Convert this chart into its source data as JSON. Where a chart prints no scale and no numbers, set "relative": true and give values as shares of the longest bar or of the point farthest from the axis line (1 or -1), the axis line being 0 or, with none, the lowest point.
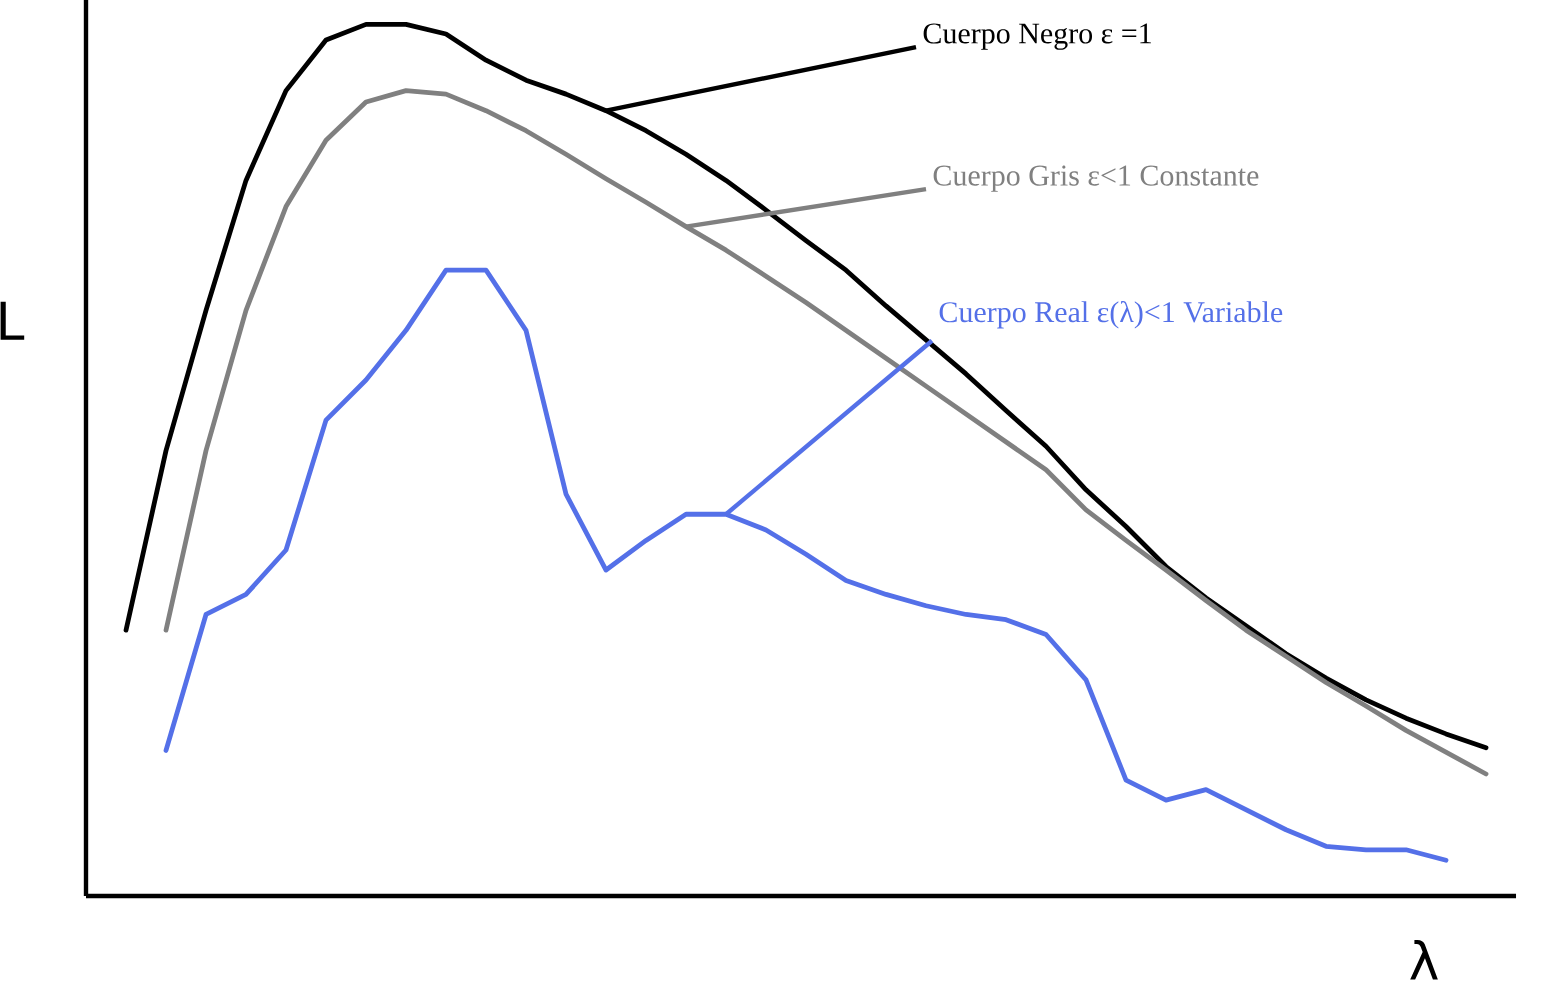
{
  "chart_data": {
    "type": "line",
    "relative": true,
    "xlabel": "λ",
    "ylabel": "L",
    "categories": [
      null,
      null,
      null,
      null,
      null,
      null,
      null,
      null,
      null,
      null,
      null,
      null,
      null,
      null,
      null,
      null,
      null,
      null,
      null,
      null,
      null,
      null,
      null,
      null,
      null,
      null,
      null,
      null,
      null,
      null,
      null,
      null,
      null,
      null,
      null
    ],
    "series": [
      {
        "name": "Cuerpo Negro  ε =1",
        "color": "#000000",
        "values": [
          0.305,
          0.511,
          0.672,
          0.821,
          0.924,
          0.982,
          1,
          1,
          0.989,
          0.959,
          0.936,
          0.92,
          0.901,
          0.878,
          0.851,
          0.821,
          0.787,
          0.752,
          0.718,
          0.677,
          0.638,
          0.599,
          0.557,
          0.516,
          0.466,
          0.424,
          0.378,
          0.342,
          0.31,
          0.278,
          0.25,
          0.225,
          0.204,
          0.186,
          0.17
        ]
      },
      {
        "name": "Cuerpo Gris  ε<1 Constante",
        "color": "#808080",
        "values": [
          null,
          0.305,
          0.511,
          0.672,
          0.791,
          0.867,
          0.911,
          0.924,
          0.92,
          0.901,
          0.878,
          0.851,
          0.823,
          0.796,
          0.768,
          0.741,
          0.711,
          0.681,
          0.649,
          0.617,
          0.585,
          0.553,
          0.521,
          0.489,
          0.443,
          0.408,
          0.374,
          0.339,
          0.305,
          0.275,
          0.245,
          0.218,
          0.19,
          0.165,
          0.14
        ]
      },
      {
        "name": "Cuerpo Real  ε(λ)<1 Variable",
        "color": "#5470e8",
        "values": [
          null,
          0.167,
          0.323,
          0.346,
          0.397,
          0.546,
          0.592,
          0.649,
          0.718,
          0.718,
          0.649,
          0.461,
          0.374,
          0.408,
          0.438,
          0.438,
          0.42,
          0.392,
          0.362,
          0.346,
          0.333,
          0.323,
          0.317,
          0.3,
          0.248,
          0.133,
          0.11,
          0.122,
          0.099,
          0.076,
          0.057,
          0.053,
          0.053,
          0.041,
          null
        ]
      }
    ]
  }
}
